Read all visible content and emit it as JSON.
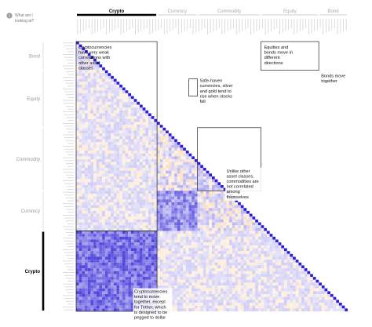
{
  "help": {
    "icon": "info-circle-icon",
    "question": [
      "What am I",
      "looking at?"
    ]
  },
  "categories": [
    {
      "key": "crypto",
      "label": "Crypto",
      "count": 28
    },
    {
      "key": "currency",
      "label": "Currency",
      "count": 14
    },
    {
      "key": "commodity",
      "label": "Commodity",
      "count": 22
    },
    {
      "key": "equity",
      "label": "Equity",
      "count": 20
    },
    {
      "key": "bond",
      "label": "Bond",
      "count": 10
    }
  ],
  "active_category": "crypto",
  "annotations": [
    {
      "key": "bond-equity",
      "lines": [
        "Equities and",
        "bonds move in",
        "different",
        "directions"
      ]
    },
    {
      "key": "bond-bond",
      "lines": [
        "Bonds move",
        "together"
      ]
    },
    {
      "key": "safe-haven",
      "lines": [
        "Safe-haven",
        "currencies, silver",
        "and gold tend to",
        "rise when stocks",
        "fall"
      ]
    },
    {
      "key": "crypto-weak",
      "lines": [
        "Cryptocurrencies",
        "have very weak",
        "correlations with",
        "other asset",
        "classes"
      ]
    },
    {
      "key": "commodities",
      "lines": [
        "Unlike other",
        "asset classes,",
        "commodities are",
        "not correlated",
        "among",
        "themselves"
      ]
    },
    {
      "key": "crypto-together",
      "lines": [
        "Cryptocurrencies",
        "tend to move",
        "together, except",
        "for Tether, which",
        "is designed to be",
        "pegged to dollar"
      ]
    }
  ],
  "colors": {
    "positive": "#3b2fd9",
    "negative": "#f29a3a",
    "neutral": "#ffffff",
    "frame": "#222222"
  },
  "chart_data": {
    "type": "heatmap",
    "layout": "lower-triangle",
    "legend": "none",
    "blocks": [
      {
        "rows": "crypto",
        "cols": "crypto",
        "pattern": "strong-positive"
      },
      {
        "rows": "crypto",
        "cols": "other",
        "pattern": "weak"
      },
      {
        "rows": "currency",
        "cols": "currency",
        "pattern": "moderate-positive"
      },
      {
        "rows": "commodity",
        "cols": "commodity",
        "pattern": "weak"
      },
      {
        "rows": "equity",
        "cols": "equity",
        "pattern": "moderate-positive"
      },
      {
        "rows": "bond",
        "cols": "bond",
        "pattern": "strong-positive"
      },
      {
        "rows": "bond",
        "cols": "equity",
        "pattern": "negative"
      },
      {
        "rows": "equity",
        "cols": "safe-haven",
        "pattern": "negative"
      }
    ]
  }
}
